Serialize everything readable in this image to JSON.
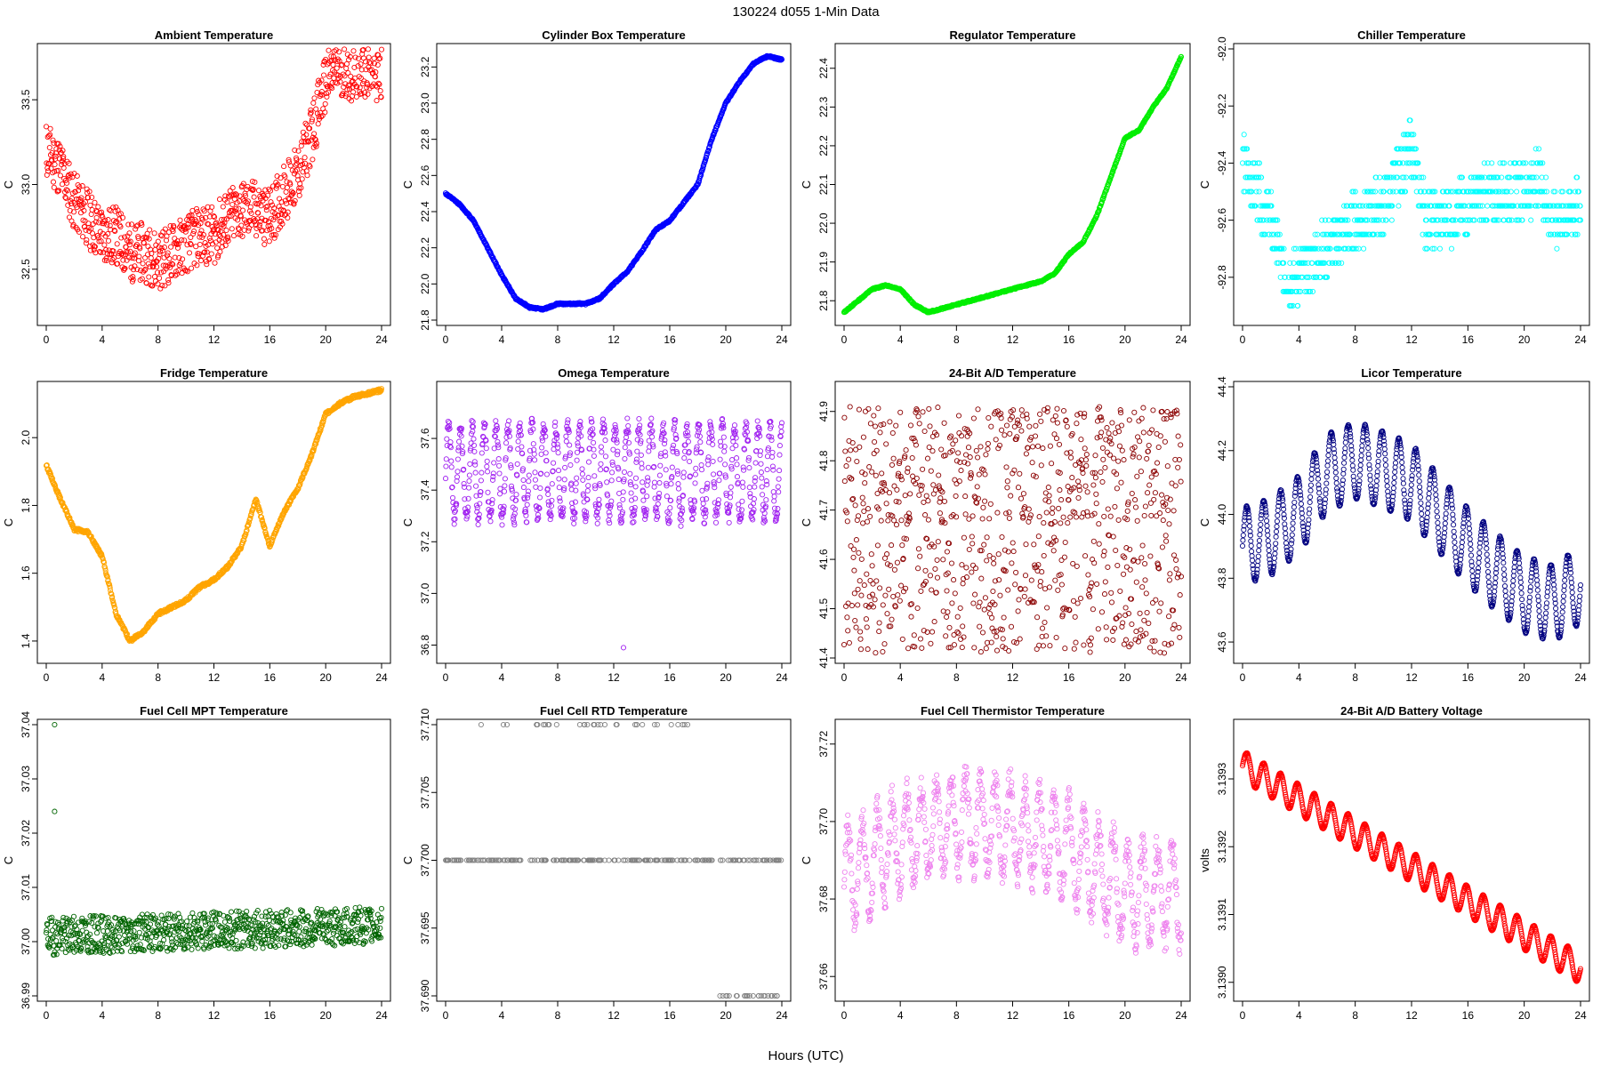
{
  "page": {
    "title": "130224   d055   1-Min Data",
    "xlabel": "Hours (UTC)"
  },
  "chart_data": [
    {
      "id": "ambient",
      "type": "scatter",
      "title": "Ambient Temperature",
      "ylabel": "C",
      "color": "#ff0000",
      "xlim": [
        0,
        24
      ],
      "xticks": [
        0,
        4,
        8,
        12,
        16,
        20,
        24
      ],
      "ylim": [
        32.2,
        33.8
      ],
      "yticks": [
        32.5,
        33.0,
        33.5
      ],
      "ytick_labels": [
        "32.5",
        "33.0",
        "33.5"
      ],
      "x": [
        0,
        1,
        2,
        3,
        4,
        5,
        6,
        7,
        8,
        9,
        10,
        11,
        12,
        13,
        14,
        15,
        16,
        17,
        18,
        19,
        20,
        21,
        22,
        23,
        24
      ],
      "y": [
        33.2,
        33.1,
        32.9,
        32.8,
        32.7,
        32.7,
        32.6,
        32.6,
        32.55,
        32.6,
        32.65,
        32.7,
        32.7,
        32.8,
        32.85,
        32.85,
        32.8,
        32.95,
        33.05,
        33.3,
        33.6,
        33.7,
        33.65,
        33.7,
        33.65
      ],
      "spread": 0.35,
      "seed": 11,
      "style": "noisy"
    },
    {
      "id": "cylinder",
      "type": "scatter",
      "title": "Cylinder Box Temperature",
      "ylabel": "C",
      "color": "#0000ff",
      "xlim": [
        0,
        24
      ],
      "xticks": [
        0,
        4,
        8,
        12,
        16,
        20,
        24
      ],
      "ylim": [
        21.8,
        23.3
      ],
      "yticks": [
        21.8,
        22.0,
        22.2,
        22.4,
        22.6,
        22.8,
        23.0,
        23.2
      ],
      "ytick_labels": [
        "21.8",
        "22.0",
        "22.2",
        "22.4",
        "22.6",
        "22.8",
        "23.0",
        "23.2"
      ],
      "x": [
        0,
        1,
        2,
        3,
        4,
        5,
        6,
        7,
        8,
        9,
        10,
        11,
        12,
        13,
        14,
        15,
        16,
        17,
        18,
        19,
        20,
        21,
        22,
        23,
        24
      ],
      "y": [
        22.5,
        22.44,
        22.35,
        22.2,
        22.05,
        21.92,
        21.87,
        21.86,
        21.89,
        21.89,
        21.89,
        21.92,
        22.0,
        22.07,
        22.18,
        22.3,
        22.35,
        22.45,
        22.55,
        22.8,
        23.0,
        23.12,
        23.22,
        23.26,
        23.24
      ],
      "spread": 0.01,
      "seed": 12,
      "style": "smooth"
    },
    {
      "id": "regulator",
      "type": "scatter",
      "title": "Regulator Temperature",
      "ylabel": "C",
      "color": "#00ee00",
      "xlim": [
        0,
        24
      ],
      "xticks": [
        0,
        4,
        8,
        12,
        16,
        20,
        24
      ],
      "ylim": [
        21.75,
        22.45
      ],
      "yticks": [
        21.8,
        21.9,
        22.0,
        22.1,
        22.2,
        22.3,
        22.4
      ],
      "ytick_labels": [
        "21.8",
        "21.9",
        "22.0",
        "22.1",
        "22.2",
        "22.3",
        "22.4"
      ],
      "x": [
        0,
        1,
        2,
        3,
        4,
        5,
        6,
        7,
        8,
        9,
        10,
        11,
        12,
        13,
        14,
        15,
        16,
        17,
        18,
        19,
        20,
        21,
        22,
        23,
        24
      ],
      "y": [
        21.77,
        21.8,
        21.83,
        21.84,
        21.83,
        21.79,
        21.77,
        21.78,
        21.79,
        21.8,
        21.81,
        21.82,
        21.83,
        21.84,
        21.85,
        21.87,
        21.92,
        21.95,
        22.02,
        22.12,
        22.22,
        22.24,
        22.3,
        22.35,
        22.43
      ],
      "spread": 0.004,
      "seed": 13,
      "style": "smooth"
    },
    {
      "id": "chiller",
      "type": "scatter",
      "title": "Chiller Temperature",
      "ylabel": "C",
      "color": "#00ffff",
      "xlim": [
        0,
        24
      ],
      "xticks": [
        0,
        4,
        8,
        12,
        16,
        20,
        24
      ],
      "ylim": [
        -92.95,
        -92.0
      ],
      "yticks": [
        -92.8,
        -92.6,
        -92.4,
        -92.2,
        -92.0
      ],
      "ytick_labels": [
        "-92.8",
        "-92.6",
        "-92.4",
        "-92.2",
        "-92.0"
      ],
      "x": [
        0,
        2,
        3,
        4,
        6,
        8,
        10,
        12,
        13,
        14,
        16,
        18,
        20,
        21,
        22,
        24
      ],
      "y": [
        -92.4,
        -92.6,
        -92.8,
        -92.8,
        -92.7,
        -92.6,
        -92.55,
        -92.35,
        -92.6,
        -92.6,
        -92.55,
        -92.5,
        -92.5,
        -92.45,
        -92.6,
        -92.55
      ],
      "spread": 0.2,
      "seed": 14,
      "style": "quantized",
      "step": 0.05
    },
    {
      "id": "fridge",
      "type": "scatter",
      "title": "Fridge Temperature",
      "ylabel": "C",
      "color": "#ffa500",
      "xlim": [
        0,
        24
      ],
      "xticks": [
        0,
        4,
        8,
        12,
        16,
        20,
        24
      ],
      "ylim": [
        1.35,
        2.15
      ],
      "yticks": [
        1.4,
        1.6,
        1.8,
        2.0
      ],
      "ytick_labels": [
        "1.4",
        "1.6",
        "1.8",
        "2.0"
      ],
      "x": [
        0,
        1,
        2,
        3,
        4,
        5,
        6,
        7,
        8,
        9,
        10,
        11,
        12,
        13,
        14,
        15,
        16,
        17,
        18,
        19,
        20,
        21,
        22,
        23,
        24
      ],
      "y": [
        1.92,
        1.82,
        1.73,
        1.72,
        1.65,
        1.48,
        1.4,
        1.43,
        1.48,
        1.5,
        1.52,
        1.56,
        1.58,
        1.62,
        1.68,
        1.82,
        1.68,
        1.78,
        1.85,
        1.95,
        2.07,
        2.1,
        2.12,
        2.13,
        2.14
      ],
      "spread": 0.01,
      "seed": 15,
      "style": "smooth"
    },
    {
      "id": "omega",
      "type": "scatter",
      "title": "Omega Temperature",
      "ylabel": "C",
      "color": "#a020f0",
      "xlim": [
        0,
        24
      ],
      "xticks": [
        0,
        4,
        8,
        12,
        16,
        20,
        24
      ],
      "ylim": [
        36.75,
        37.8
      ],
      "yticks": [
        36.8,
        37.0,
        37.2,
        37.4,
        37.6
      ],
      "ytick_labels": [
        "36.8",
        "37.0",
        "37.2",
        "37.4",
        "37.6"
      ],
      "x": [
        0,
        24
      ],
      "y": [
        37.47,
        37.47
      ],
      "amp": 0.18,
      "period": 0.85,
      "spread": 0.06,
      "seed": 16,
      "style": "wave",
      "outliers": [
        [
          12.7,
          36.79
        ]
      ]
    },
    {
      "id": "ad24temp",
      "type": "scatter",
      "title": "24-Bit A/D Temperature",
      "ylabel": "C",
      "color": "#8b0000",
      "xlim": [
        0,
        24
      ],
      "xticks": [
        0,
        4,
        8,
        12,
        16,
        20,
        24
      ],
      "ylim": [
        41.4,
        41.95
      ],
      "yticks": [
        41.4,
        41.5,
        41.6,
        41.7,
        41.8,
        41.9
      ],
      "ytick_labels": [
        "41.4",
        "41.5",
        "41.6",
        "41.7",
        "41.8",
        "41.9"
      ],
      "x": [
        0,
        24
      ],
      "y": [
        41.68,
        41.68
      ],
      "spread": 0.24,
      "seed": 17,
      "style": "bimodal",
      "modes": [
        41.79,
        41.53
      ]
    },
    {
      "id": "licor",
      "type": "scatter",
      "title": "Licor Temperature",
      "ylabel": "C",
      "color": "#000080",
      "xlim": [
        0,
        24
      ],
      "xticks": [
        0,
        4,
        8,
        12,
        16,
        20,
        24
      ],
      "ylim": [
        43.55,
        44.4
      ],
      "yticks": [
        43.6,
        43.8,
        44.0,
        44.2,
        44.4
      ],
      "ytick_labels": [
        "43.6",
        "43.8",
        "44.0",
        "44.2",
        "44.4"
      ],
      "x": [
        0,
        2,
        4,
        6,
        8,
        10,
        12,
        14,
        16,
        18,
        20,
        22,
        24
      ],
      "y": [
        43.9,
        43.93,
        44.0,
        44.13,
        44.17,
        44.14,
        44.1,
        44.0,
        43.9,
        43.82,
        43.75,
        43.72,
        43.78
      ],
      "amp": 0.12,
      "period": 1.2,
      "spread": 0.005,
      "seed": 18,
      "style": "wave"
    },
    {
      "id": "fcmpt",
      "type": "scatter",
      "title": "Fuel Cell MPT Temperature",
      "ylabel": "C",
      "color": "#006400",
      "xlim": [
        0,
        24
      ],
      "xticks": [
        0,
        4,
        8,
        12,
        16,
        20,
        24
      ],
      "ylim": [
        36.99,
        37.04
      ],
      "yticks": [
        36.99,
        37.0,
        37.01,
        37.02,
        37.03,
        37.04
      ],
      "ytick_labels": [
        "36.99",
        "37.00",
        "37.01",
        "37.02",
        "37.03",
        "37.04"
      ],
      "x": [
        0,
        24
      ],
      "y": [
        37.001,
        37.003
      ],
      "spread": 0.007,
      "seed": 19,
      "style": "noisy",
      "outliers": [
        [
          0.6,
          37.04
        ],
        [
          0.6,
          37.024
        ]
      ]
    },
    {
      "id": "fcrtd",
      "type": "scatter",
      "title": "Fuel Cell RTD Temperature",
      "ylabel": "C",
      "color": "#808080",
      "xlim": [
        0,
        24
      ],
      "xticks": [
        0,
        4,
        8,
        12,
        16,
        20,
        24
      ],
      "ylim": [
        37.69,
        37.71
      ],
      "yticks": [
        37.69,
        37.695,
        37.7,
        37.705,
        37.71
      ],
      "ytick_labels": [
        "37.690",
        "37.695",
        "37.700",
        "37.705",
        "37.710"
      ],
      "x": [
        0,
        24
      ],
      "y": [
        37.7,
        37.7
      ],
      "style": "levels",
      "seed": 20,
      "levels": [
        {
          "value": 37.7,
          "from": 0,
          "to": 24,
          "density": 1.0
        },
        {
          "value": 37.71,
          "from": 2.5,
          "to": 17.5,
          "density": 0.25
        },
        {
          "value": 37.69,
          "from": 19.5,
          "to": 24,
          "density": 0.6
        }
      ]
    },
    {
      "id": "fcthermistor",
      "type": "scatter",
      "title": "Fuel Cell Thermistor Temperature",
      "ylabel": "C",
      "color": "#ee82ee",
      "xlim": [
        0,
        24
      ],
      "xticks": [
        0,
        4,
        8,
        12,
        16,
        20,
        24
      ],
      "ylim": [
        37.655,
        37.725
      ],
      "yticks": [
        37.66,
        37.68,
        37.7,
        37.72
      ],
      "ytick_labels": [
        "37.66",
        "37.68",
        "37.70",
        "37.72"
      ],
      "x": [
        0,
        4,
        8,
        12,
        16,
        20,
        24
      ],
      "y": [
        37.685,
        37.695,
        37.7,
        37.698,
        37.693,
        37.682,
        37.681
      ],
      "amp": 0.012,
      "period": 1.05,
      "spread": 0.008,
      "seed": 21,
      "style": "wave"
    },
    {
      "id": "battery",
      "type": "scatter",
      "title": "24-Bit A/D Battery Voltage",
      "ylabel": "volts",
      "color": "#ff0000",
      "xlim": [
        0,
        24
      ],
      "xticks": [
        0,
        4,
        8,
        12,
        16,
        20,
        24
      ],
      "ylim": [
        3.13898,
        3.13938
      ],
      "yticks": [
        3.139,
        3.1391,
        3.1392,
        3.1393
      ],
      "ytick_labels": [
        "3.1390",
        "3.1391",
        "3.1392",
        "3.1393"
      ],
      "x": [
        0,
        24
      ],
      "y": [
        3.13932,
        3.13902
      ],
      "amp": 2.2e-05,
      "period": 1.2,
      "spread": 1e-06,
      "seed": 22,
      "style": "wave"
    }
  ]
}
